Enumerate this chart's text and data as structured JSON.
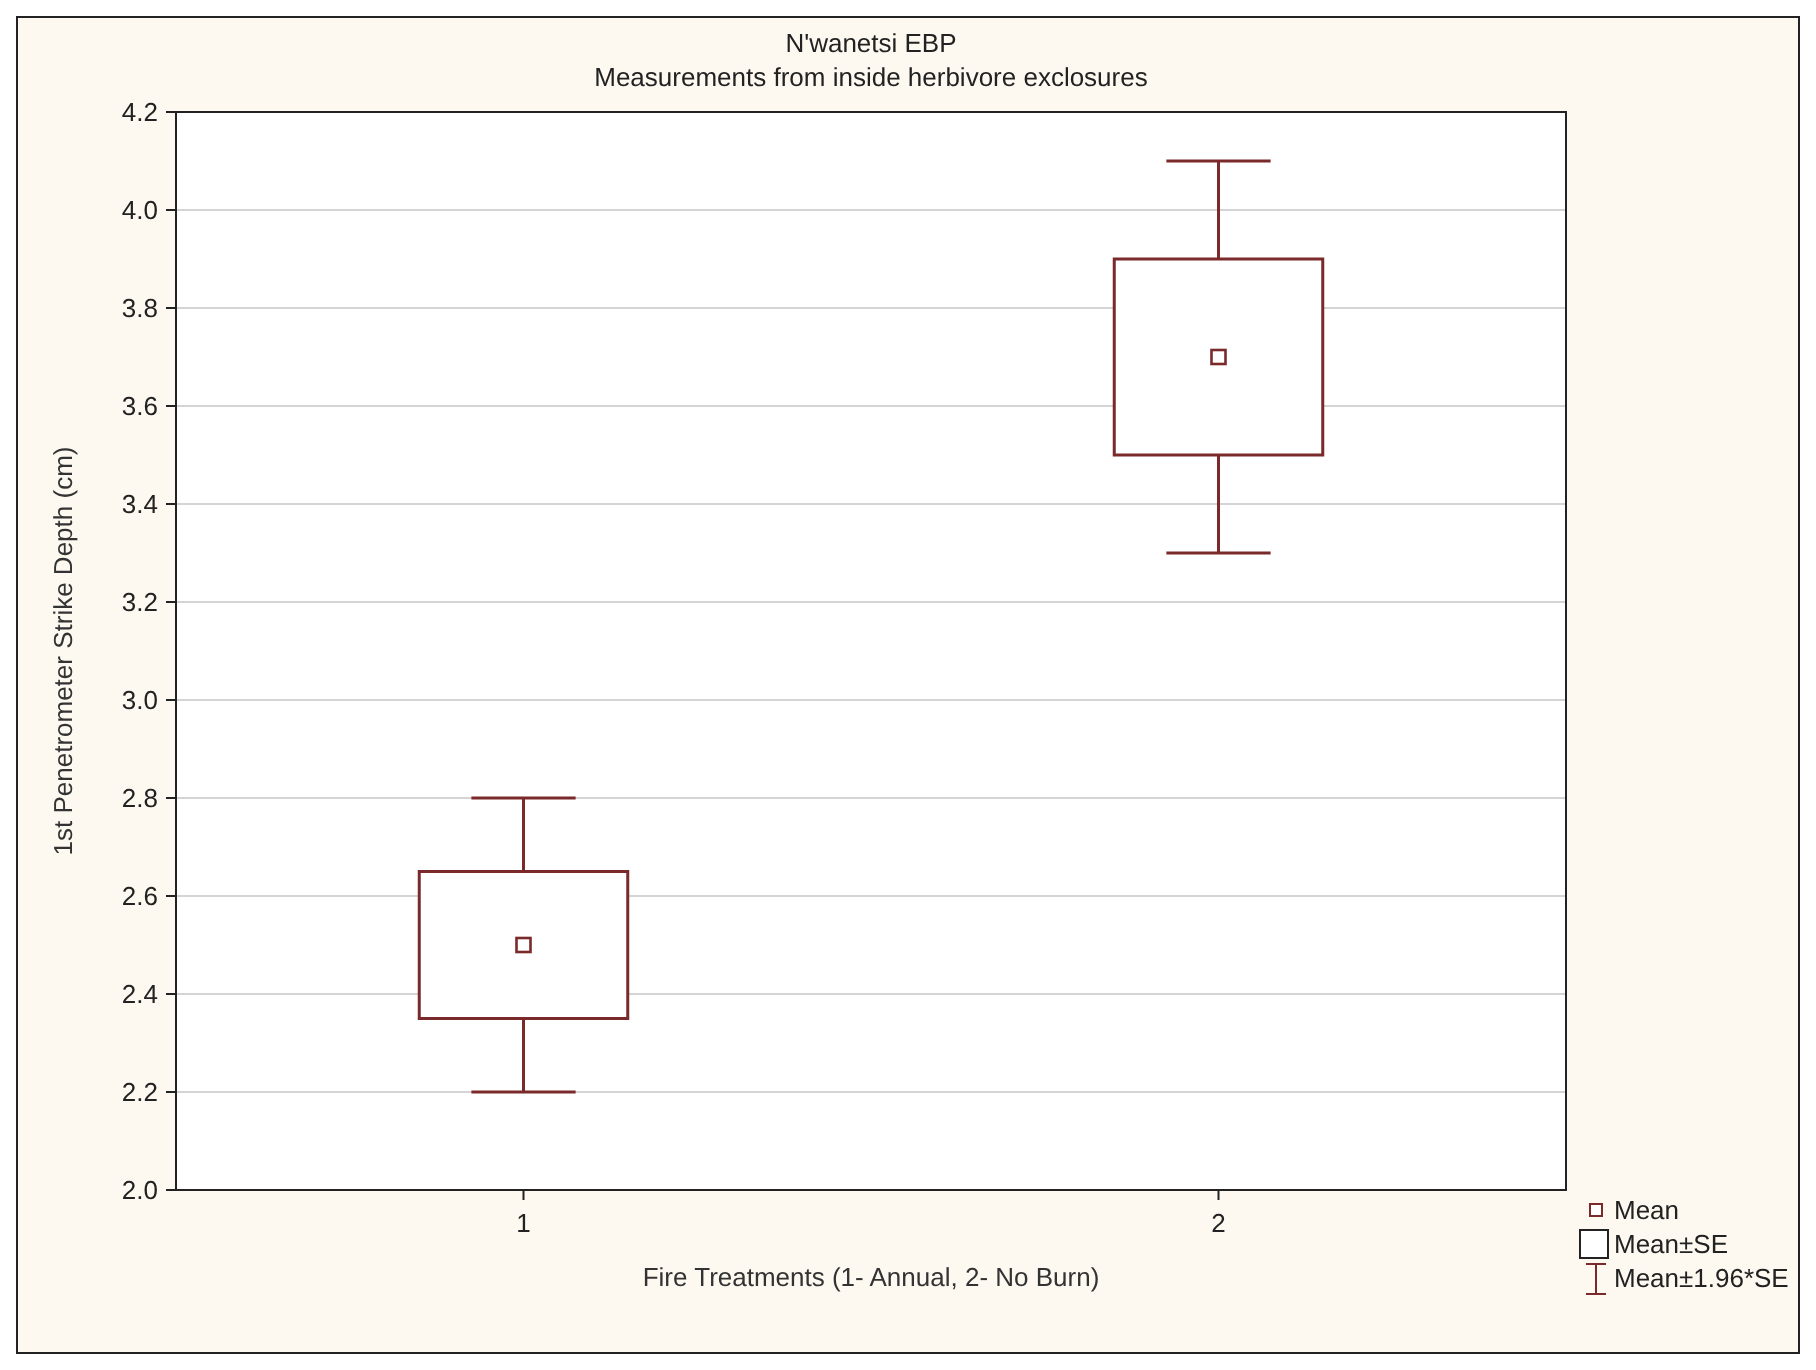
{
  "chart_data": {
    "type": "box",
    "title": "N'wanetsi EBP",
    "subtitle": "Measurements from inside herbivore exclosures",
    "xlabel": "Fire Treatments (1- Annual, 2- No Burn)",
    "ylabel": "1st Penetrometer Strike Depth (cm)",
    "categories": [
      "1",
      "2"
    ],
    "color": "#7a2a2a",
    "boxes": [
      {
        "low": 2.2,
        "q1": 2.35,
        "q3": 2.65,
        "high": 2.8,
        "mean": 2.5
      },
      {
        "low": 3.3,
        "q1": 3.5,
        "q3": 3.9,
        "high": 4.1,
        "mean": 3.7
      }
    ],
    "ylim": [
      2.0,
      4.2
    ],
    "yticks": [
      {
        "value": 2,
        "label": "2.0"
      },
      2.2,
      2.4,
      2.6,
      2.8,
      {
        "value": 3,
        "label": "3.0"
      },
      3.2,
      3.4,
      3.6,
      3.8,
      {
        "value": 4,
        "label": "4.0"
      },
      4.2
    ],
    "grid": "y",
    "annotations": [
      "Mean",
      "Mean±SE",
      "Mean±1.96*SE"
    ]
  }
}
